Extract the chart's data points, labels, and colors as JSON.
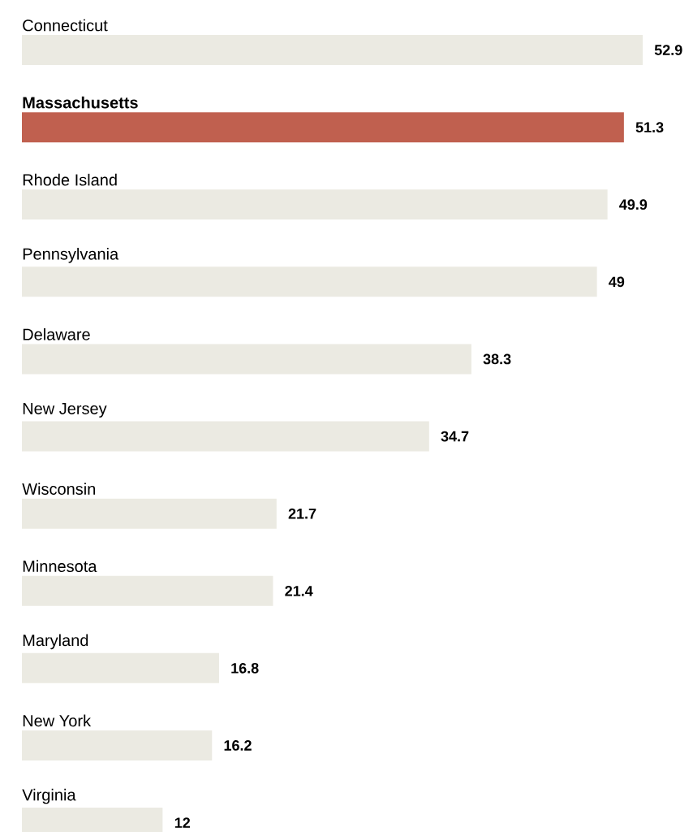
{
  "chart_data": {
    "type": "bar",
    "orientation": "horizontal",
    "data_labels": true,
    "categories": [
      "Connecticut",
      "**Massachusetts**",
      "Rhode Island",
      "Pennsylvania",
      "Delaware",
      "New Jersey",
      "Wisconsin",
      "Minnesota",
      "Maryland",
      "New York",
      "Virginia"
    ],
    "values": [
      52.9,
      51.3,
      49.9,
      49,
      38.3,
      34.7,
      21.7,
      21.4,
      16.8,
      16.2,
      12
    ],
    "colors": [
      "#ebeae2",
      "#c0604f",
      "#ebeae2",
      "#ebeae2",
      "#ebeae2",
      "#ebeae2",
      "#ebeae2",
      "#ebeae2",
      "#ebeae2",
      "#ebeae2",
      "#ebeae2"
    ]
  }
}
